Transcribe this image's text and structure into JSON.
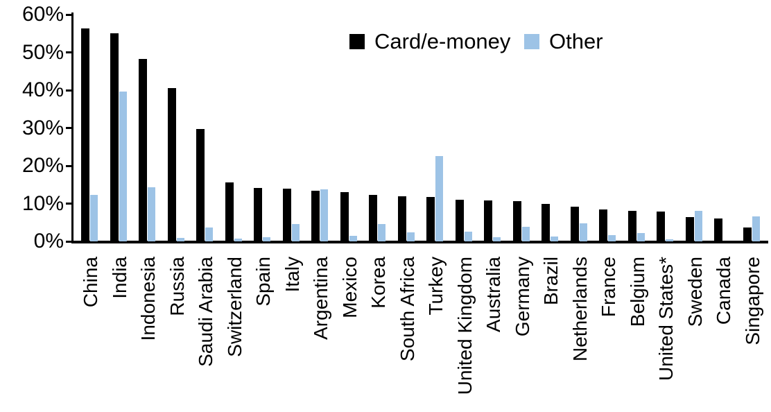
{
  "legend": {
    "card_label": "Card/e-money",
    "other_label": "Other"
  },
  "colors": {
    "card_series": "#000000",
    "other_series": "#9DC3E6",
    "axis": "#000000"
  },
  "chart_data": {
    "type": "bar",
    "title": "",
    "xlabel": "",
    "ylabel": "",
    "ylim": [
      0,
      60
    ],
    "grid": false,
    "legend_position": "top-center",
    "y_tick_labels": [
      "0%",
      "10%",
      "20%",
      "30%",
      "40%",
      "50%",
      "60%"
    ],
    "y_tick_values": [
      0,
      10,
      20,
      30,
      40,
      50,
      60
    ],
    "categories": [
      "China",
      "India",
      "Indonesia",
      "Russia",
      "Saudi Arabia",
      "Switzerland",
      "Spain",
      "Italy",
      "Argentina",
      "Mexico",
      "Korea",
      "South Africa",
      "Turkey",
      "United Kingdom",
      "Australia",
      "Germany",
      "Brazil",
      "Netherlands",
      "France",
      "Belgium",
      "United States*",
      "Sweden",
      "Canada",
      "Singapore"
    ],
    "series": [
      {
        "name": "Card/e-money",
        "color": "#000000",
        "values": [
          56.3,
          55.0,
          48.3,
          40.6,
          29.8,
          15.6,
          14.1,
          14.0,
          13.4,
          13.0,
          12.3,
          11.9,
          11.7,
          11.0,
          10.9,
          10.7,
          10.0,
          9.2,
          8.5,
          8.1,
          7.8,
          6.5,
          6.0,
          3.7
        ]
      },
      {
        "name": "Other",
        "color": "#9DC3E6",
        "values": [
          12.3,
          39.6,
          14.4,
          1.0,
          3.7,
          0.8,
          1.1,
          4.5,
          13.7,
          1.5,
          4.6,
          2.4,
          22.6,
          2.5,
          1.1,
          3.9,
          1.2,
          4.8,
          1.7,
          2.2,
          0.5,
          8.1,
          0.0,
          6.6
        ]
      }
    ]
  }
}
